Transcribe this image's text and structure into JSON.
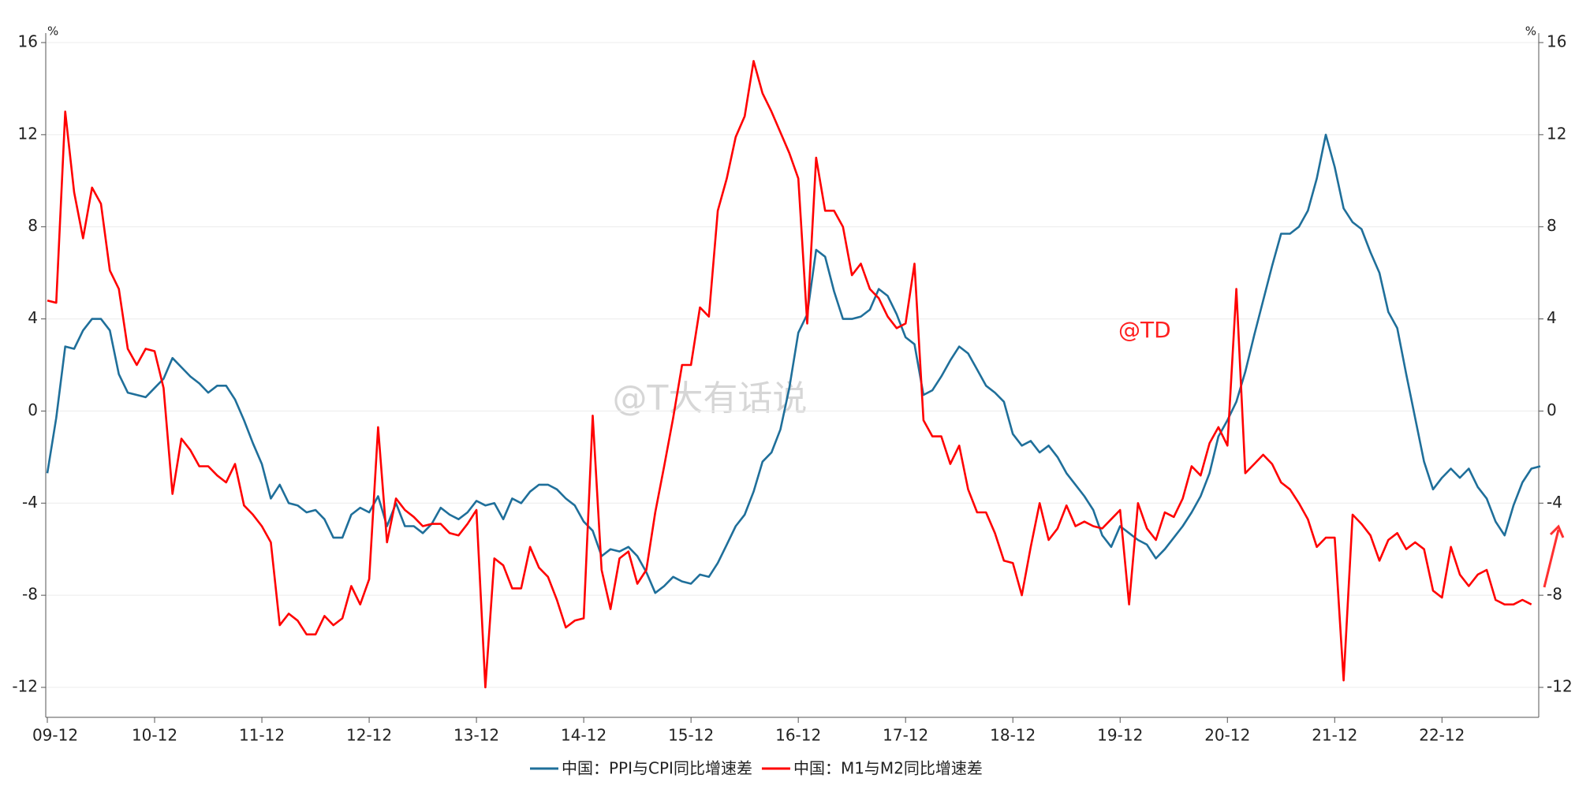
{
  "chart_data": {
    "type": "line",
    "y_unit": "%",
    "y2_unit": "%",
    "annotations": [
      "@TD",
      "@T大有话说"
    ],
    "categories": [
      "09-12",
      null,
      null,
      null,
      null,
      null,
      null,
      null,
      null,
      null,
      null,
      null,
      "10-12",
      null,
      null,
      null,
      null,
      null,
      null,
      null,
      null,
      null,
      null,
      null,
      "11-12",
      null,
      null,
      null,
      null,
      null,
      null,
      null,
      null,
      null,
      null,
      null,
      "12-12",
      null,
      null,
      null,
      null,
      null,
      null,
      null,
      null,
      null,
      null,
      null,
      "13-12",
      null,
      null,
      null,
      null,
      null,
      null,
      null,
      null,
      null,
      null,
      null,
      "14-12",
      null,
      null,
      null,
      null,
      null,
      null,
      null,
      null,
      null,
      null,
      null,
      "15-12",
      null,
      null,
      null,
      null,
      null,
      null,
      null,
      null,
      null,
      null,
      null,
      "16-12",
      null,
      null,
      null,
      null,
      null,
      null,
      null,
      null,
      null,
      null,
      null,
      "17-12",
      null,
      null,
      null,
      null,
      null,
      null,
      null,
      null,
      null,
      null,
      null,
      "18-12",
      null,
      null,
      null,
      null,
      null,
      null,
      null,
      null,
      null,
      null,
      null,
      "19-12",
      null,
      null,
      null,
      null,
      null,
      null,
      null,
      null,
      null,
      null,
      null,
      "20-12",
      null,
      null,
      null,
      null,
      null,
      null,
      null,
      null,
      null,
      null,
      null,
      "21-12",
      null,
      null,
      null,
      null,
      null,
      null,
      null,
      null,
      null,
      null,
      null,
      "22-12",
      null,
      null,
      null,
      null,
      null,
      null,
      null,
      null,
      null,
      null,
      null
    ],
    "series": [
      {
        "name": "中国：PPI与CPI同比增速差",
        "color": "#1f6f9a",
        "values": [
          -2.7,
          -0.3,
          2.8,
          2.7,
          3.5,
          4.0,
          4.0,
          3.5,
          1.6,
          0.8,
          0.7,
          0.6,
          1.0,
          1.4,
          2.3,
          1.9,
          1.5,
          1.2,
          0.8,
          1.1,
          1.1,
          0.5,
          -0.4,
          -1.4,
          -2.3,
          -3.8,
          -3.2,
          -4.0,
          -4.1,
          -4.4,
          -4.3,
          -4.7,
          -5.5,
          -5.5,
          -4.5,
          -4.2,
          -4.4,
          -3.7,
          -5.0,
          -4.0,
          -5.0,
          -5.0,
          -5.3,
          -4.9,
          -4.2,
          -4.5,
          -4.7,
          -4.4,
          -3.9,
          -4.1,
          -4.0,
          -4.7,
          -3.8,
          -4.0,
          -3.5,
          -3.2,
          -3.2,
          -3.4,
          -3.8,
          -4.1,
          -4.8,
          -5.2,
          -6.3,
          -6.0,
          -6.1,
          -5.9,
          -6.3,
          -7.0,
          -7.9,
          -7.6,
          -7.2,
          -7.4,
          -7.5,
          -7.1,
          -7.2,
          -6.6,
          -5.8,
          -5.0,
          -4.5,
          -3.5,
          -2.2,
          -1.8,
          -0.8,
          1.0,
          3.4,
          4.2,
          7.0,
          6.7,
          5.2,
          4.0,
          4.0,
          4.1,
          4.4,
          5.3,
          5.0,
          4.2,
          3.2,
          2.9,
          0.7,
          0.9,
          1.5,
          2.2,
          2.8,
          2.5,
          1.8,
          1.1,
          0.8,
          0.4,
          -1.0,
          -1.5,
          -1.3,
          -1.8,
          -1.5,
          -2.0,
          -2.7,
          -3.2,
          -3.7,
          -4.3,
          -5.4,
          -5.9,
          -5.0,
          -5.3,
          -5.6,
          -5.8,
          -6.4,
          -6.0,
          -5.5,
          -5.0,
          -4.4,
          -3.7,
          -2.7,
          -1.1,
          -0.4,
          0.4,
          1.7,
          3.3,
          4.8,
          6.3,
          7.7,
          7.7,
          8.0,
          8.7,
          10.1,
          12.0,
          10.6,
          8.8,
          8.2,
          7.9,
          6.9,
          6.0,
          4.3,
          3.6,
          1.6,
          -0.3,
          -2.2,
          -3.4,
          -2.9,
          -2.5,
          -2.9,
          -2.5,
          -3.3,
          -3.8,
          -4.8,
          -5.4,
          -4.1,
          -3.1,
          -2.5,
          -2.4
        ]
      },
      {
        "name": "中国：M1与M2同比增速差",
        "color": "#ff0000",
        "values": [
          4.8,
          4.7,
          13.0,
          9.5,
          7.5,
          9.7,
          9.0,
          6.1,
          5.3,
          2.7,
          2.0,
          2.7,
          2.6,
          1.0,
          -3.6,
          -1.2,
          -1.7,
          -2.4,
          -2.4,
          -2.8,
          -3.1,
          -2.3,
          -4.1,
          -4.5,
          -5.0,
          -5.7,
          -9.3,
          -8.8,
          -9.1,
          -9.7,
          -9.7,
          -8.9,
          -9.3,
          -9.0,
          -7.6,
          -8.4,
          -7.3,
          -0.7,
          -5.7,
          -3.8,
          -4.3,
          -4.6,
          -5.0,
          -4.9,
          -4.9,
          -5.3,
          -5.4,
          -4.9,
          -4.3,
          -12.0,
          -6.4,
          -6.7,
          -7.7,
          -7.7,
          -5.9,
          -6.8,
          -7.2,
          -8.2,
          -9.4,
          -9.1,
          -9.0,
          -0.2,
          -6.9,
          -8.6,
          -6.4,
          -6.1,
          -7.5,
          -6.9,
          -4.4,
          -2.4,
          -0.3,
          2.0,
          2.0,
          4.5,
          4.1,
          8.7,
          10.1,
          11.9,
          12.8,
          15.2,
          13.8,
          13.0,
          12.1,
          11.2,
          10.1,
          3.8,
          11.0,
          8.7,
          8.7,
          8.0,
          5.9,
          6.4,
          5.3,
          4.9,
          4.1,
          3.6,
          3.8,
          6.4,
          -0.4,
          -1.1,
          -1.1,
          -2.3,
          -1.5,
          -3.4,
          -4.4,
          -4.4,
          -5.3,
          -6.5,
          -6.6,
          -8.0,
          -5.9,
          -4.0,
          -5.6,
          -5.1,
          -4.1,
          -5.0,
          -4.8,
          -5.0,
          -5.1,
          -4.7,
          -4.3,
          -8.4,
          -4.0,
          -5.1,
          -5.6,
          -4.4,
          -4.6,
          -3.8,
          -2.4,
          -2.8,
          -1.4,
          -0.7,
          -1.5,
          5.3,
          -2.7,
          -2.3,
          -1.9,
          -2.3,
          -3.1,
          -3.4,
          -4.0,
          -4.7,
          -5.9,
          -5.5,
          -5.5,
          -11.7,
          -4.5,
          -4.9,
          -5.4,
          -6.5,
          -5.6,
          -5.3,
          -6.0,
          -5.7,
          -6.0,
          -7.8,
          -8.1,
          -5.9,
          -7.1,
          -7.6,
          -7.1,
          -6.9,
          -8.2,
          -8.4,
          -8.4,
          -8.2,
          -8.4,
          null
        ]
      }
    ],
    "ylim": [
      -12,
      16
    ],
    "yticks": [
      -12,
      -8,
      -4,
      0,
      4,
      8,
      12,
      16
    ],
    "y2lim": [
      -12,
      16
    ],
    "y2ticks": [
      -12,
      -8,
      -4,
      0,
      4,
      8,
      12,
      16
    ],
    "grid": true,
    "legend": "bottom"
  }
}
